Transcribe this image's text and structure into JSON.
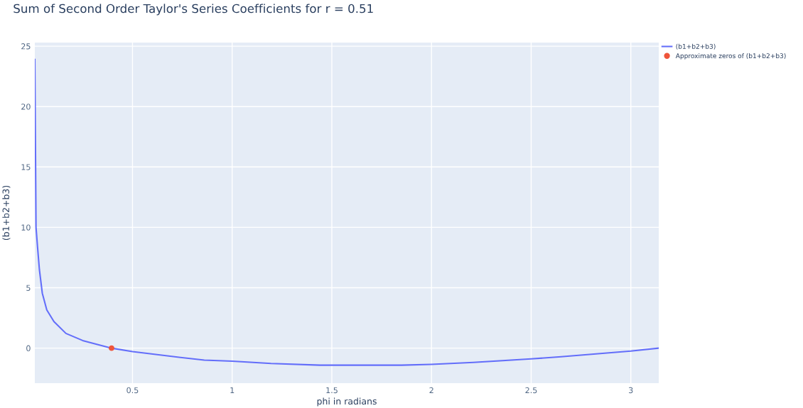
{
  "chart_data": {
    "type": "line",
    "title": "Sum of Second Order Taylor's Series Coefficients for r = 0.51",
    "xlabel": "phi in radians",
    "ylabel": "(b1+b2+b3)",
    "xlim": [
      0.01,
      3.14
    ],
    "ylim": [
      -2.9,
      25.3
    ],
    "xticks": [
      0.5,
      1,
      1.5,
      2,
      2.5,
      3
    ],
    "yticks": [
      0,
      5,
      10,
      15,
      20,
      25
    ],
    "grid": true,
    "legend": "top right",
    "series": [
      {
        "name": "(b1+b2+b3)",
        "color": "#636efa",
        "x": [
          0.01,
          0.014,
          0.016,
          0.024,
          0.033,
          0.0475,
          0.07,
          0.106,
          0.166,
          0.25,
          0.395,
          0.5,
          0.726,
          0.86,
          1.0,
          1.195,
          1.44,
          1.85,
          2.0,
          2.21,
          2.5,
          2.65,
          3.0,
          3.14
        ],
        "values": [
          23.9,
          15,
          10,
          8.3,
          6.5,
          4.55,
          3.17,
          2.2,
          1.22,
          0.63,
          0,
          -0.29,
          -0.74,
          -0.99,
          -1.08,
          -1.27,
          -1.41,
          -1.41,
          -1.34,
          -1.18,
          -0.89,
          -0.71,
          -0.24,
          0
        ]
      },
      {
        "name": "Approximate zeros of (b1+b2+b3)",
        "color": "#ef553b",
        "type": "scatter",
        "marker": "circle",
        "x": [
          0.395
        ],
        "values": [
          0
        ]
      }
    ]
  }
}
